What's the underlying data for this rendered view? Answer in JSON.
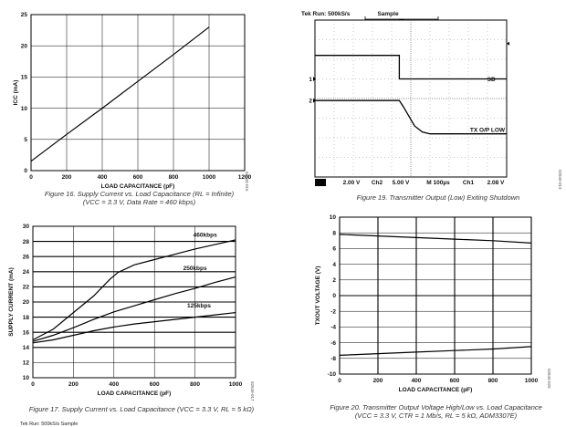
{
  "chart_data": [
    {
      "id": "fig16",
      "type": "line",
      "title": "Figure 16. Supply Current vs. Load Capacitance (RL = Infinite)",
      "subtitle": "(VCC = 3.3 V, Data Rate = 460 kbps)",
      "xlabel": "LOAD CAPACITANCE (pF)",
      "ylabel": "ICC (mA)",
      "xlim": [
        0,
        1200
      ],
      "ylim": [
        0,
        25
      ],
      "xticks": [
        0,
        200,
        400,
        600,
        800,
        1000,
        1200
      ],
      "yticks": [
        0,
        5,
        10,
        15,
        20,
        25
      ],
      "grid": true,
      "figure_id": "02849-016",
      "series": [
        {
          "name": "Icc",
          "x": [
            0,
            200,
            400,
            600,
            800,
            1000
          ],
          "values": [
            1.5,
            5.8,
            10.0,
            14.3,
            18.6,
            23.0
          ]
        }
      ]
    },
    {
      "id": "fig17",
      "type": "line",
      "title": "Figure 17. Supply Current vs. Load Capacitance (VCC = 3.3 V, RL = 5 kΩ)",
      "xlabel": "LOAD CAPACITANCE (pF)",
      "ylabel": "SUPPLY CURRENT (mA)",
      "xlim": [
        0,
        1000
      ],
      "ylim": [
        10,
        30
      ],
      "xticks": [
        0,
        200,
        400,
        600,
        800,
        1000
      ],
      "yticks": [
        10,
        12,
        14,
        16,
        18,
        20,
        22,
        24,
        26,
        28,
        30
      ],
      "grid": true,
      "figure_id": "02849-017",
      "series": [
        {
          "name": "460kbps",
          "x": [
            0,
            100,
            200,
            300,
            380,
            420,
            500,
            600,
            700,
            800,
            900,
            1000
          ],
          "values": [
            15.0,
            16.4,
            18.6,
            20.8,
            23.0,
            23.9,
            24.9,
            25.6,
            26.3,
            27.0,
            27.6,
            28.2
          ]
        },
        {
          "name": "250kbps",
          "x": [
            0,
            100,
            200,
            300,
            400,
            500,
            600,
            700,
            800,
            900,
            1000
          ],
          "values": [
            14.8,
            15.6,
            16.6,
            17.7,
            18.7,
            19.5,
            20.3,
            21.1,
            21.8,
            22.6,
            23.3
          ]
        },
        {
          "name": "125kbps",
          "x": [
            0,
            100,
            200,
            300,
            400,
            500,
            600,
            700,
            800,
            900,
            1000
          ],
          "values": [
            14.6,
            15.0,
            15.6,
            16.2,
            16.7,
            17.1,
            17.4,
            17.7,
            18.0,
            18.3,
            18.6
          ]
        }
      ]
    },
    {
      "id": "fig19",
      "type": "line",
      "title": "Figure 19. Transmitter Output (Low) Exiting Shutdown",
      "figure_id": "02849-019",
      "scope": {
        "header_left": "Tek Run: 500kS/s",
        "header_mode": "Sample",
        "ch1_marker": "1",
        "ch2_marker": "2",
        "sd_label": "SD",
        "tx_label": "TX O/P LOW",
        "status_ch1": "Ch1",
        "status_ch1_scale": "2.00 V",
        "status_ch2": "Ch2",
        "status_ch2_scale": "5.00 V",
        "status_time": "M 100µs",
        "status_trig_ch": "Ch1",
        "status_trig_level": "2.08 V"
      },
      "series": [
        {
          "name": "SD",
          "divisions_x": [
            0,
            4.4,
            4.4,
            10
          ],
          "divisions_y": [
            6.2,
            6.2,
            5.0,
            5.0
          ]
        },
        {
          "name": "TX O/P LOW",
          "divisions_x": [
            0,
            4.4,
            4.6,
            4.9,
            5.2,
            5.6,
            6.0,
            10
          ],
          "divisions_y": [
            3.9,
            3.9,
            3.6,
            3.1,
            2.6,
            2.3,
            2.2,
            2.2
          ]
        }
      ]
    },
    {
      "id": "fig20",
      "type": "line",
      "title": "Figure 20. Transmitter Output Voltage High/Low vs. Load Capacitance",
      "subtitle": "(VCC = 3.3 V, CTR = 1 Mb/s, RL = 5 kΩ, ADM3307E)",
      "xlabel": "LOAD CAPACITANCE (pF)",
      "ylabel": "TXOUT VOLTAGE (V)",
      "xlim": [
        0,
        1000
      ],
      "ylim": [
        -10,
        10
      ],
      "xticks": [
        0,
        200,
        400,
        600,
        800,
        1000
      ],
      "yticks": [
        -10,
        -8,
        -6,
        -4,
        -2,
        0,
        2,
        4,
        6,
        8,
        10
      ],
      "grid": true,
      "figure_id": "02849-020",
      "series": [
        {
          "name": "High",
          "x": [
            0,
            200,
            400,
            600,
            800,
            1000
          ],
          "values": [
            7.8,
            7.6,
            7.4,
            7.2,
            7.0,
            6.7
          ]
        },
        {
          "name": "Low",
          "x": [
            0,
            200,
            400,
            600,
            800,
            1000
          ],
          "values": [
            -7.6,
            -7.4,
            -7.2,
            -7.0,
            -6.8,
            -6.5
          ]
        }
      ]
    }
  ],
  "bottom_strip": "Tek Run: 500kS/s     Sample"
}
